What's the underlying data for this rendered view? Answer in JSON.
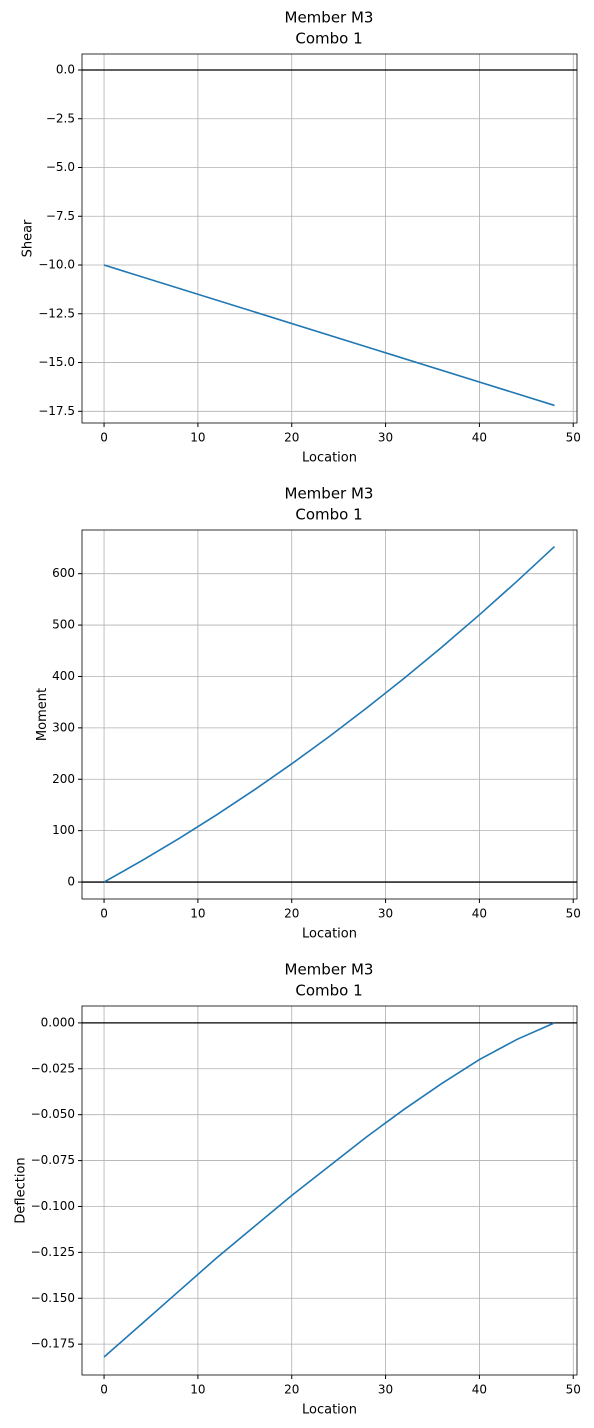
{
  "chart_data": [
    {
      "type": "line",
      "title": "Member M3",
      "subtitle": "Combo 1",
      "x_label": "Location",
      "y_label": "Shear",
      "x": [
        0,
        48
      ],
      "series": [
        {
          "name": "Shear",
          "color": "#1f77b4",
          "values": [
            -10,
            -17.2
          ]
        }
      ],
      "xlim": [
        -2.35,
        50.4
      ],
      "xticks": [
        0,
        10,
        20,
        30,
        40,
        50
      ],
      "ylim": [
        -18.1,
        0.82
      ],
      "yticks": [
        {
          "value": 0,
          "label": "0.0"
        },
        {
          "value": -2.5,
          "label": "−2.5"
        },
        {
          "value": -5,
          "label": "−5.0"
        },
        {
          "value": -7.5,
          "label": "−7.5"
        },
        {
          "value": -10,
          "label": "−10.0"
        },
        {
          "value": -12.5,
          "label": "−12.5"
        },
        {
          "value": -15,
          "label": "−15.0"
        },
        {
          "value": -17.5,
          "label": "−17.5"
        }
      ],
      "grid": true,
      "hline": 0
    },
    {
      "type": "line",
      "title": "Member M3",
      "subtitle": "Combo 1",
      "x_label": "Location",
      "y_label": "Moment",
      "x": [
        0,
        4,
        8,
        12,
        16,
        20,
        24,
        28,
        32,
        36,
        40,
        44,
        48
      ],
      "series": [
        {
          "name": "Moment",
          "color": "#1f77b4",
          "values": [
            0,
            41.2,
            84.8,
            130.8,
            179.2,
            230,
            283.2,
            338.8,
            396.8,
            457.2,
            520,
            585.2,
            652.8
          ]
        }
      ],
      "xlim": [
        -2.35,
        50.4
      ],
      "xticks": [
        0,
        10,
        20,
        30,
        40,
        50
      ],
      "ylim": [
        -33,
        685
      ],
      "yticks": [
        0,
        100,
        200,
        300,
        400,
        500,
        600
      ],
      "grid": true,
      "hline": 0
    },
    {
      "type": "line",
      "title": "Member M3",
      "subtitle": "Combo 1",
      "x_label": "Location",
      "y_label": "Deflection",
      "x": [
        0,
        4,
        8,
        12,
        16,
        20,
        24,
        28,
        32,
        36,
        40,
        44,
        48
      ],
      "series": [
        {
          "name": "Deflection",
          "color": "#1f77b4",
          "values": [
            -0.182,
            -0.164,
            -0.146,
            -0.128,
            -0.111,
            -0.094,
            -0.078,
            -0.062,
            -0.047,
            -0.033,
            -0.02,
            -0.009,
            0
          ]
        }
      ],
      "xlim": [
        -2.35,
        50.4
      ],
      "xticks": [
        0,
        10,
        20,
        30,
        40,
        50
      ],
      "ylim": [
        -0.1918,
        0.0092
      ],
      "yticks": [
        {
          "value": 0,
          "label": "0.000"
        },
        {
          "value": -0.025,
          "label": "−0.025"
        },
        {
          "value": -0.05,
          "label": "−0.050"
        },
        {
          "value": -0.075,
          "label": "−0.075"
        },
        {
          "value": -0.1,
          "label": "−0.100"
        },
        {
          "value": -0.125,
          "label": "−0.125"
        },
        {
          "value": -0.15,
          "label": "−0.150"
        },
        {
          "value": -0.175,
          "label": "−0.175"
        }
      ],
      "grid": true,
      "hline": 0
    }
  ]
}
